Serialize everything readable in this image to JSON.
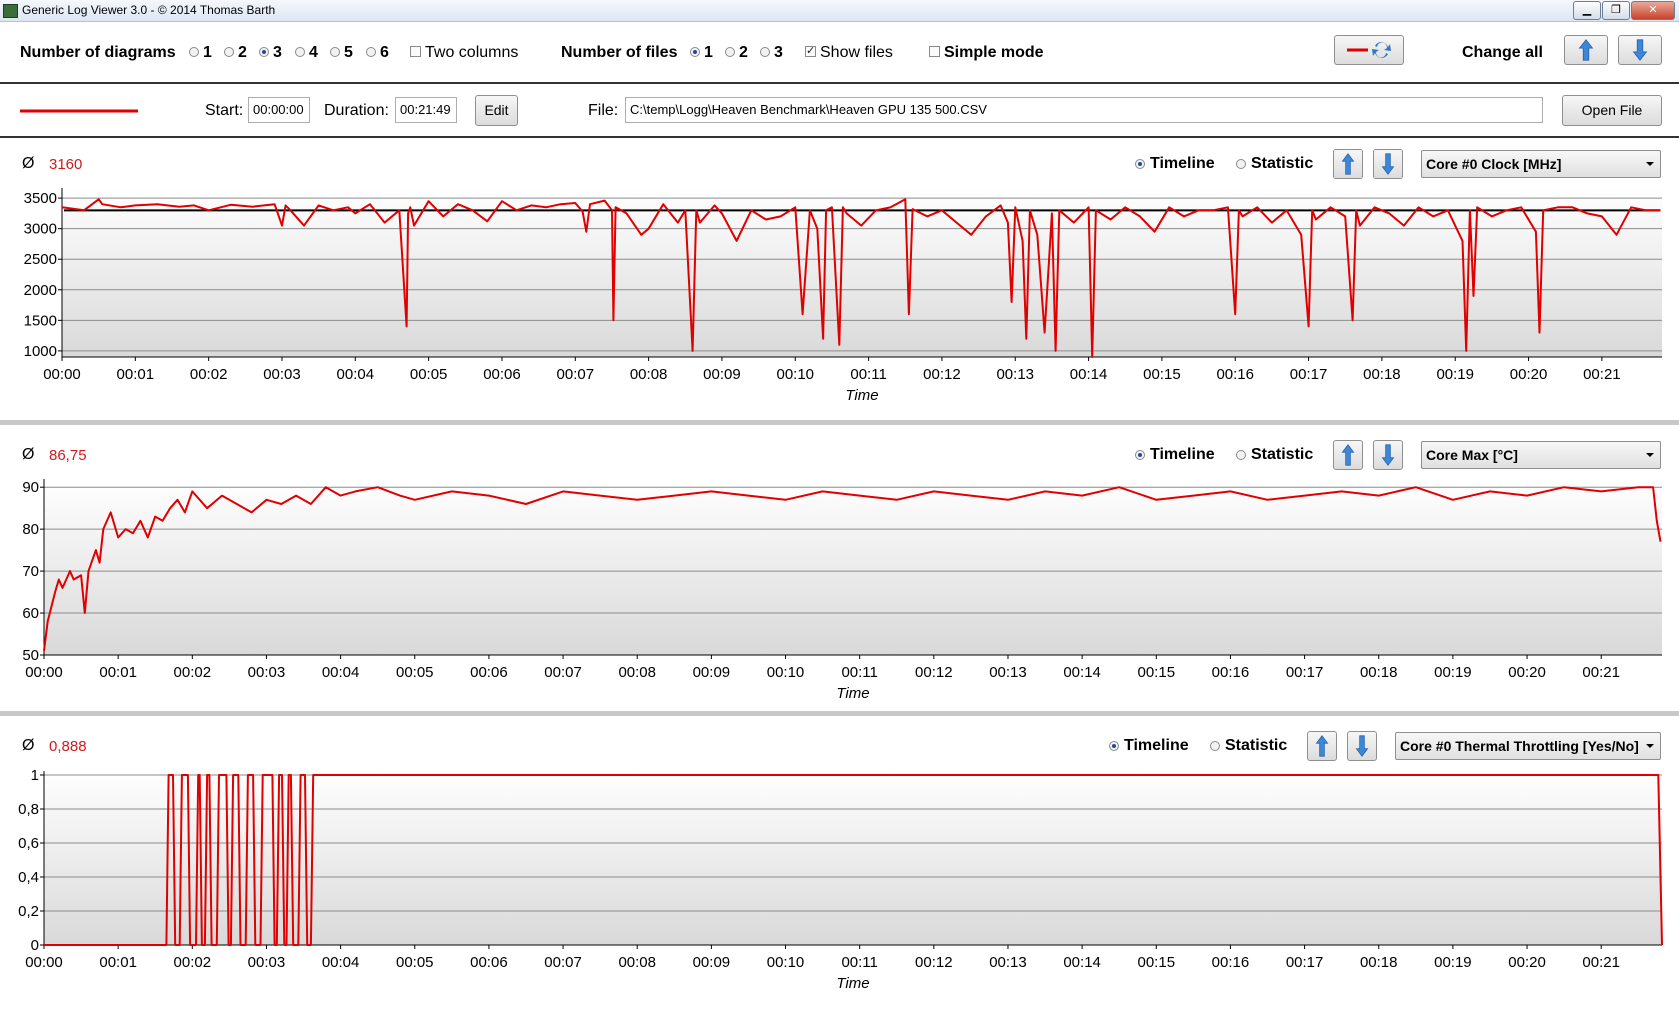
{
  "window": {
    "title": "Generic Log Viewer 3.0 - © 2014 Thomas Barth",
    "minimize": "▁",
    "restore": "❐",
    "close": "✕"
  },
  "toolbar": {
    "diagrams_label": "Number of diagrams",
    "diagram_options": [
      "1",
      "2",
      "3",
      "4",
      "5",
      "6"
    ],
    "diagram_selected": "3",
    "two_columns_label": "Two columns",
    "files_label": "Number of files",
    "file_options": [
      "1",
      "2",
      "3"
    ],
    "file_selected": "1",
    "show_files_label": "Show files",
    "show_files_checked": true,
    "simple_mode_label": "Simple mode",
    "simple_mode_checked": false,
    "change_all_label": "Change all",
    "series_color": "#e00000"
  },
  "filebar": {
    "start_label": "Start:",
    "start_value": "00:00:00",
    "duration_label": "Duration:",
    "duration_value": "00:21:49",
    "edit_label": "Edit",
    "file_label": "File:",
    "file_value": "C:\\temp\\Logg\\Heaven Benchmark\\Heaven GPU 135 500.CSV",
    "open_label": "Open File"
  },
  "common": {
    "avg_symbol": "Ø",
    "timeline_label": "Timeline",
    "statistic_label": "Statistic",
    "x_label": "Time",
    "x_ticks": [
      "00:00",
      "00:01",
      "00:02",
      "00:03",
      "00:04",
      "00:05",
      "00:06",
      "00:07",
      "00:08",
      "00:09",
      "00:10",
      "00:11",
      "00:12",
      "00:13",
      "00:14",
      "00:15",
      "00:16",
      "00:17",
      "00:18",
      "00:19",
      "00:20",
      "00:21"
    ]
  },
  "panels": [
    {
      "avg": "3160",
      "sensor": "Core #0 Clock [MHz]",
      "view": "Timeline"
    },
    {
      "avg": "86,75",
      "sensor": "Core Max [°C]",
      "view": "Timeline"
    },
    {
      "avg": "0,888",
      "sensor": "Core #0 Thermal Throttling [Yes/No]",
      "view": "Timeline"
    }
  ],
  "chart_data": [
    {
      "type": "line",
      "x_unit": "minutes",
      "xlim": [
        0,
        21.82
      ],
      "ylim": [
        900,
        3600
      ],
      "y_ticks": [
        "1000",
        "1500",
        "2000",
        "2500",
        "3000",
        "3500"
      ],
      "y_tick_values": [
        1000,
        1500,
        2000,
        2500,
        3000,
        3500
      ],
      "reference_line": 3300,
      "xlabel": "Time",
      "series": [
        {
          "x": [
            0,
            0.3,
            0.5,
            0.55,
            0.8,
            1.0,
            1.3,
            1.6,
            1.8,
            2.0,
            2.3,
            2.6,
            2.9,
            3.0,
            3.05,
            3.1,
            3.3,
            3.5,
            3.7,
            3.9,
            4.0,
            4.2,
            4.4,
            4.6,
            4.7,
            4.72,
            4.75,
            4.8,
            5.0,
            5.2,
            5.4,
            5.6,
            5.8,
            6.0,
            6.2,
            6.4,
            6.6,
            6.8,
            7.0,
            7.1,
            7.15,
            7.2,
            7.4,
            7.5,
            7.52,
            7.55,
            7.7,
            7.9,
            8.0,
            8.2,
            8.4,
            8.5,
            8.6,
            8.65,
            8.7,
            8.9,
            9.0,
            9.2,
            9.4,
            9.6,
            9.8,
            10.0,
            10.1,
            10.2,
            10.3,
            10.38,
            10.42,
            10.5,
            10.6,
            10.65,
            10.7,
            10.9,
            11.1,
            11.3,
            11.5,
            11.55,
            11.6,
            11.8,
            12.0,
            12.2,
            12.4,
            12.6,
            12.8,
            12.9,
            12.95,
            13.0,
            13.1,
            13.15,
            13.2,
            13.3,
            13.4,
            13.5,
            13.55,
            13.6,
            13.8,
            14.0,
            14.05,
            14.1,
            14.3,
            14.5,
            14.7,
            14.9,
            15.1,
            15.3,
            15.5,
            15.7,
            15.9,
            16.0,
            16.05,
            16.1,
            16.3,
            16.5,
            16.7,
            16.9,
            17.0,
            17.05,
            17.1,
            17.3,
            17.5,
            17.6,
            17.65,
            17.7,
            17.9,
            18.1,
            18.3,
            18.5,
            18.7,
            18.9,
            19.1,
            19.15,
            19.2,
            19.25,
            19.3,
            19.5,
            19.7,
            19.9,
            20.1,
            20.15,
            20.2,
            20.4,
            20.6,
            20.8,
            21.0,
            21.2,
            21.4,
            21.6,
            21.8
          ],
          "y": [
            3350,
            3300,
            3480,
            3400,
            3350,
            3380,
            3400,
            3360,
            3380,
            3300,
            3390,
            3360,
            3400,
            3050,
            3380,
            3320,
            3050,
            3380,
            3300,
            3350,
            3250,
            3400,
            3100,
            3300,
            1400,
            3250,
            3350,
            3050,
            3450,
            3200,
            3400,
            3300,
            3120,
            3450,
            3300,
            3380,
            3350,
            3400,
            3420,
            3280,
            2950,
            3400,
            3460,
            3300,
            1500,
            3350,
            3250,
            2900,
            3000,
            3400,
            3100,
            3300,
            1000,
            3300,
            3100,
            3380,
            3250,
            2800,
            3300,
            3150,
            3200,
            3350,
            1600,
            3300,
            3000,
            1200,
            3300,
            3350,
            1100,
            3350,
            3250,
            3050,
            3300,
            3350,
            3480,
            1600,
            3320,
            3200,
            3300,
            3100,
            2900,
            3200,
            3380,
            3100,
            1800,
            3350,
            2800,
            1200,
            3300,
            2900,
            1300,
            3250,
            1000,
            3300,
            3100,
            3350,
            900,
            3300,
            3150,
            3350,
            3200,
            2950,
            3350,
            3200,
            3300,
            3300,
            3350,
            1600,
            3300,
            3200,
            3350,
            3100,
            3300,
            2900,
            1400,
            3300,
            3150,
            3350,
            3200,
            1500,
            3300,
            3050,
            3350,
            3250,
            3050,
            3350,
            3200,
            3300,
            2800,
            1000,
            3300,
            1900,
            3350,
            3200,
            3300,
            3350,
            2950,
            1300,
            3300,
            3350,
            3350,
            3250,
            3200,
            2900,
            3350,
            3300,
            3300
          ]
        }
      ]
    },
    {
      "type": "line",
      "x_unit": "minutes",
      "xlim": [
        0,
        21.82
      ],
      "ylim": [
        50,
        91
      ],
      "y_ticks": [
        "50",
        "60",
        "70",
        "80",
        "90"
      ],
      "y_tick_values": [
        50,
        60,
        70,
        80,
        90
      ],
      "xlabel": "Time",
      "series": [
        {
          "x": [
            0,
            0.05,
            0.15,
            0.2,
            0.25,
            0.35,
            0.4,
            0.5,
            0.55,
            0.6,
            0.7,
            0.75,
            0.8,
            0.9,
            1.0,
            1.1,
            1.2,
            1.3,
            1.4,
            1.5,
            1.6,
            1.7,
            1.8,
            1.9,
            2.0,
            2.2,
            2.4,
            2.6,
            2.8,
            3.0,
            3.2,
            3.4,
            3.6,
            3.8,
            4.0,
            4.2,
            4.5,
            4.8,
            5.0,
            5.5,
            6.0,
            6.5,
            7.0,
            7.5,
            8.0,
            8.5,
            9.0,
            9.5,
            10.0,
            10.5,
            11.0,
            11.5,
            12.0,
            12.5,
            13.0,
            13.5,
            14.0,
            14.5,
            15.0,
            15.5,
            16.0,
            16.5,
            17.0,
            17.5,
            18.0,
            18.5,
            19.0,
            19.5,
            20.0,
            20.5,
            21.0,
            21.5,
            21.7,
            21.75,
            21.8
          ],
          "y": [
            51,
            58,
            65,
            68,
            66,
            70,
            68,
            69,
            60,
            70,
            75,
            72,
            80,
            84,
            78,
            80,
            79,
            82,
            78,
            83,
            82,
            85,
            87,
            84,
            89,
            85,
            88,
            86,
            84,
            87,
            86,
            88,
            86,
            90,
            88,
            89,
            90,
            88,
            87,
            89,
            88,
            86,
            89,
            88,
            87,
            88,
            89,
            88,
            87,
            89,
            88,
            87,
            89,
            88,
            87,
            89,
            88,
            90,
            87,
            88,
            89,
            87,
            88,
            89,
            88,
            90,
            87,
            89,
            88,
            90,
            89,
            90,
            90,
            82,
            77
          ]
        }
      ]
    },
    {
      "type": "line",
      "x_unit": "minutes",
      "xlim": [
        0,
        21.82
      ],
      "ylim": [
        0,
        1
      ],
      "y_ticks": [
        "0",
        "0,2",
        "0,4",
        "0,6",
        "0,8",
        "1"
      ],
      "y_tick_values": [
        0,
        0.2,
        0.4,
        0.6,
        0.8,
        1
      ],
      "xlabel": "Time",
      "series": [
        {
          "x": [
            0,
            1.65,
            1.68,
            1.74,
            1.77,
            1.83,
            1.86,
            1.94,
            1.97,
            2.05,
            2.08,
            2.1,
            2.13,
            2.17,
            2.2,
            2.23,
            2.26,
            2.33,
            2.36,
            2.46,
            2.49,
            2.52,
            2.55,
            2.62,
            2.65,
            2.72,
            2.75,
            2.82,
            2.85,
            2.92,
            2.95,
            3.08,
            3.11,
            3.14,
            3.17,
            3.21,
            3.24,
            3.27,
            3.3,
            3.33,
            3.36,
            3.43,
            3.46,
            3.52,
            3.55,
            3.6,
            3.63,
            3.67,
            21.77,
            21.82
          ],
          "y": [
            0,
            0,
            1,
            1,
            0,
            0,
            1,
            1,
            0,
            0,
            1,
            1,
            0,
            0,
            1,
            1,
            0,
            0,
            1,
            1,
            0,
            0,
            1,
            1,
            0,
            0,
            1,
            1,
            0,
            0,
            1,
            1,
            0,
            0,
            1,
            1,
            0,
            0,
            1,
            1,
            0,
            0,
            1,
            1,
            0,
            0,
            1,
            1,
            1,
            0
          ]
        }
      ]
    }
  ]
}
